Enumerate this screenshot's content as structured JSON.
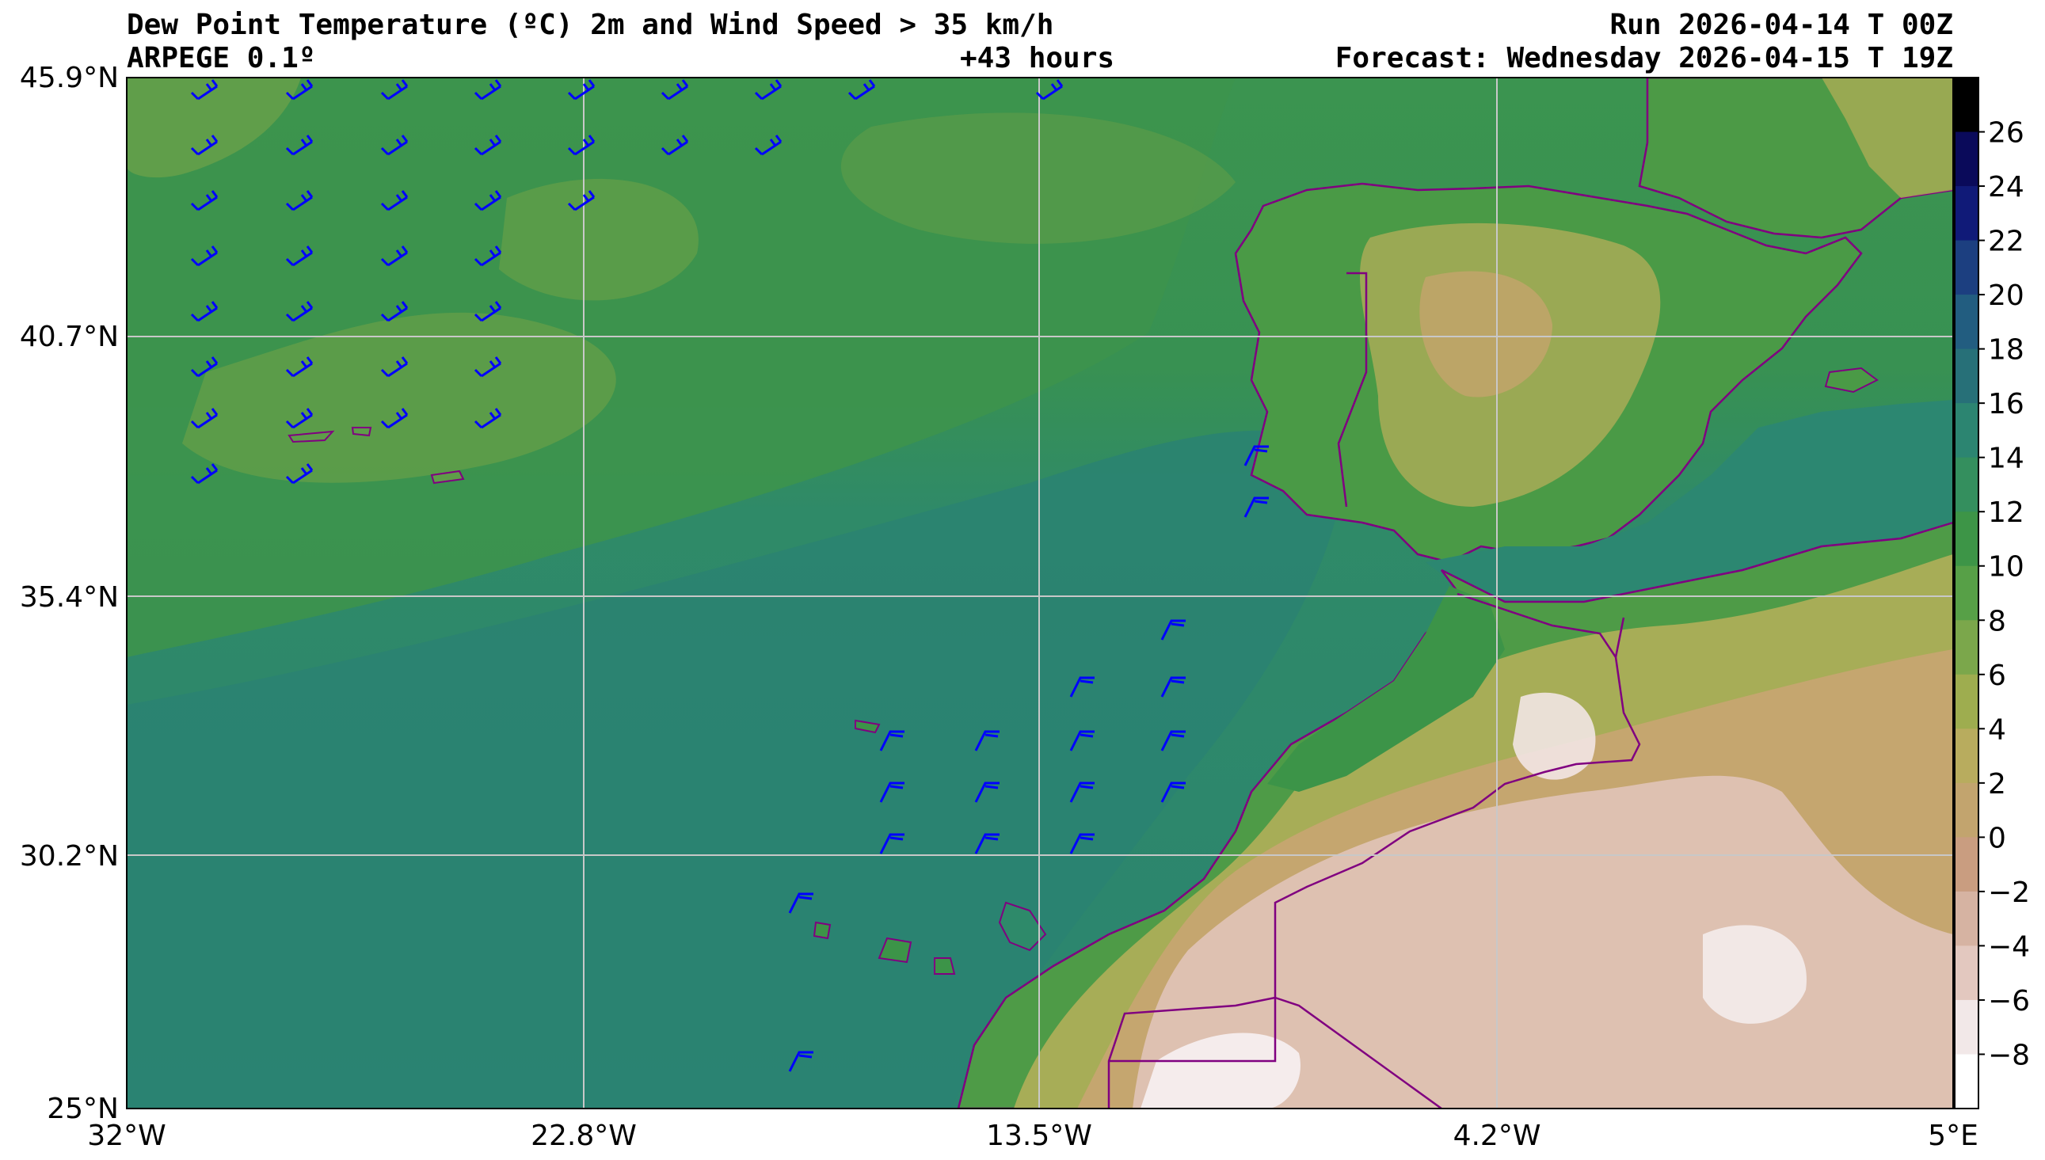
{
  "header": {
    "title": "Dew Point Temperature (ºC) 2m and Wind Speed > 35 km/h",
    "model": "ARPEGE 0.1º",
    "lead": "+43 hours",
    "run": "Run 2026-04-14 T 00Z",
    "forecast": "Forecast: Wednesday 2026-04-15 T 19Z"
  },
  "axes": {
    "lat_labels": [
      "45.9°N",
      "40.7°N",
      "35.4°N",
      "30.2°N",
      "25°N"
    ],
    "lon_labels": [
      "32°W",
      "22.8°W",
      "13.5°W",
      "4.2°W",
      "5°E"
    ]
  },
  "colorbar": {
    "ticks": [
      "26",
      "24",
      "22",
      "20",
      "18",
      "16",
      "14",
      "12",
      "10",
      "8",
      "6",
      "4",
      "2",
      "0",
      "−2",
      "−4",
      "−6",
      "−8"
    ],
    "colors": [
      "#000000",
      "#0a0a5a",
      "#101a78",
      "#1c3f80",
      "#225d80",
      "#277078",
      "#2c8571",
      "#348f5e",
      "#3d9547",
      "#57a047",
      "#7ba74b",
      "#9ead4f",
      "#b8ac5e",
      "#c2a46e",
      "#c99d80",
      "#d6b3a2",
      "#e3c8bf",
      "#f2e8e8",
      "#ffffff"
    ]
  },
  "map_colors": {
    "ocean_deep": "#2b8571",
    "ocean_mid": "#319065",
    "ocean_north": "#3a9350",
    "ocean_patch": "#5c9c49",
    "land_green": "#4b9a46",
    "land_olive": "#a7ad57",
    "land_tan": "#c4a56e",
    "land_pink": "#e2c5b8",
    "land_white": "#f5ecec",
    "border": "#800080",
    "barb": "#0000ff",
    "grid": "#c8c8c8"
  }
}
